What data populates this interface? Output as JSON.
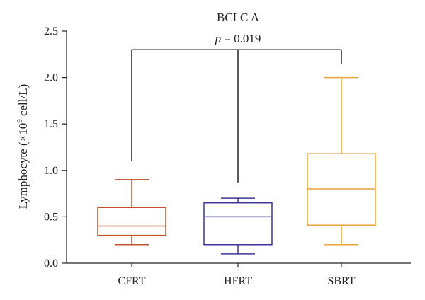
{
  "chart_data": {
    "type": "box",
    "title": "BCLC A",
    "annotation": "p = 0.019",
    "annotation_p": "p",
    "annotation_value": " = 0.019",
    "ylabel": "Lymphocyte (×10",
    "ylabel_sup": "9",
    "ylabel_tail": " cell/L)",
    "ylim": [
      0,
      2.5
    ],
    "yticks": [
      "0.0",
      "0.5",
      "1.0",
      "1.5",
      "2.0",
      "2.5"
    ],
    "categories": [
      "CFRT",
      "HFRT",
      "SBRT"
    ],
    "boxes": [
      {
        "label": "CFRT",
        "min": 0.2,
        "q1": 0.3,
        "median": 0.4,
        "q3": 0.6,
        "max": 0.9,
        "color": "#c0532b"
      },
      {
        "label": "HFRT",
        "min": 0.1,
        "q1": 0.2,
        "median": 0.5,
        "q3": 0.65,
        "max": 0.7,
        "color": "#3a3596"
      },
      {
        "label": "SBRT",
        "min": 0.2,
        "q1": 0.41,
        "median": 0.8,
        "q3": 1.18,
        "max": 2.0,
        "color": "#e6a53a"
      }
    ],
    "bracket_leg_ends": [
      1.1,
      0.87,
      2.15
    ],
    "bracket_level": 2.3
  }
}
